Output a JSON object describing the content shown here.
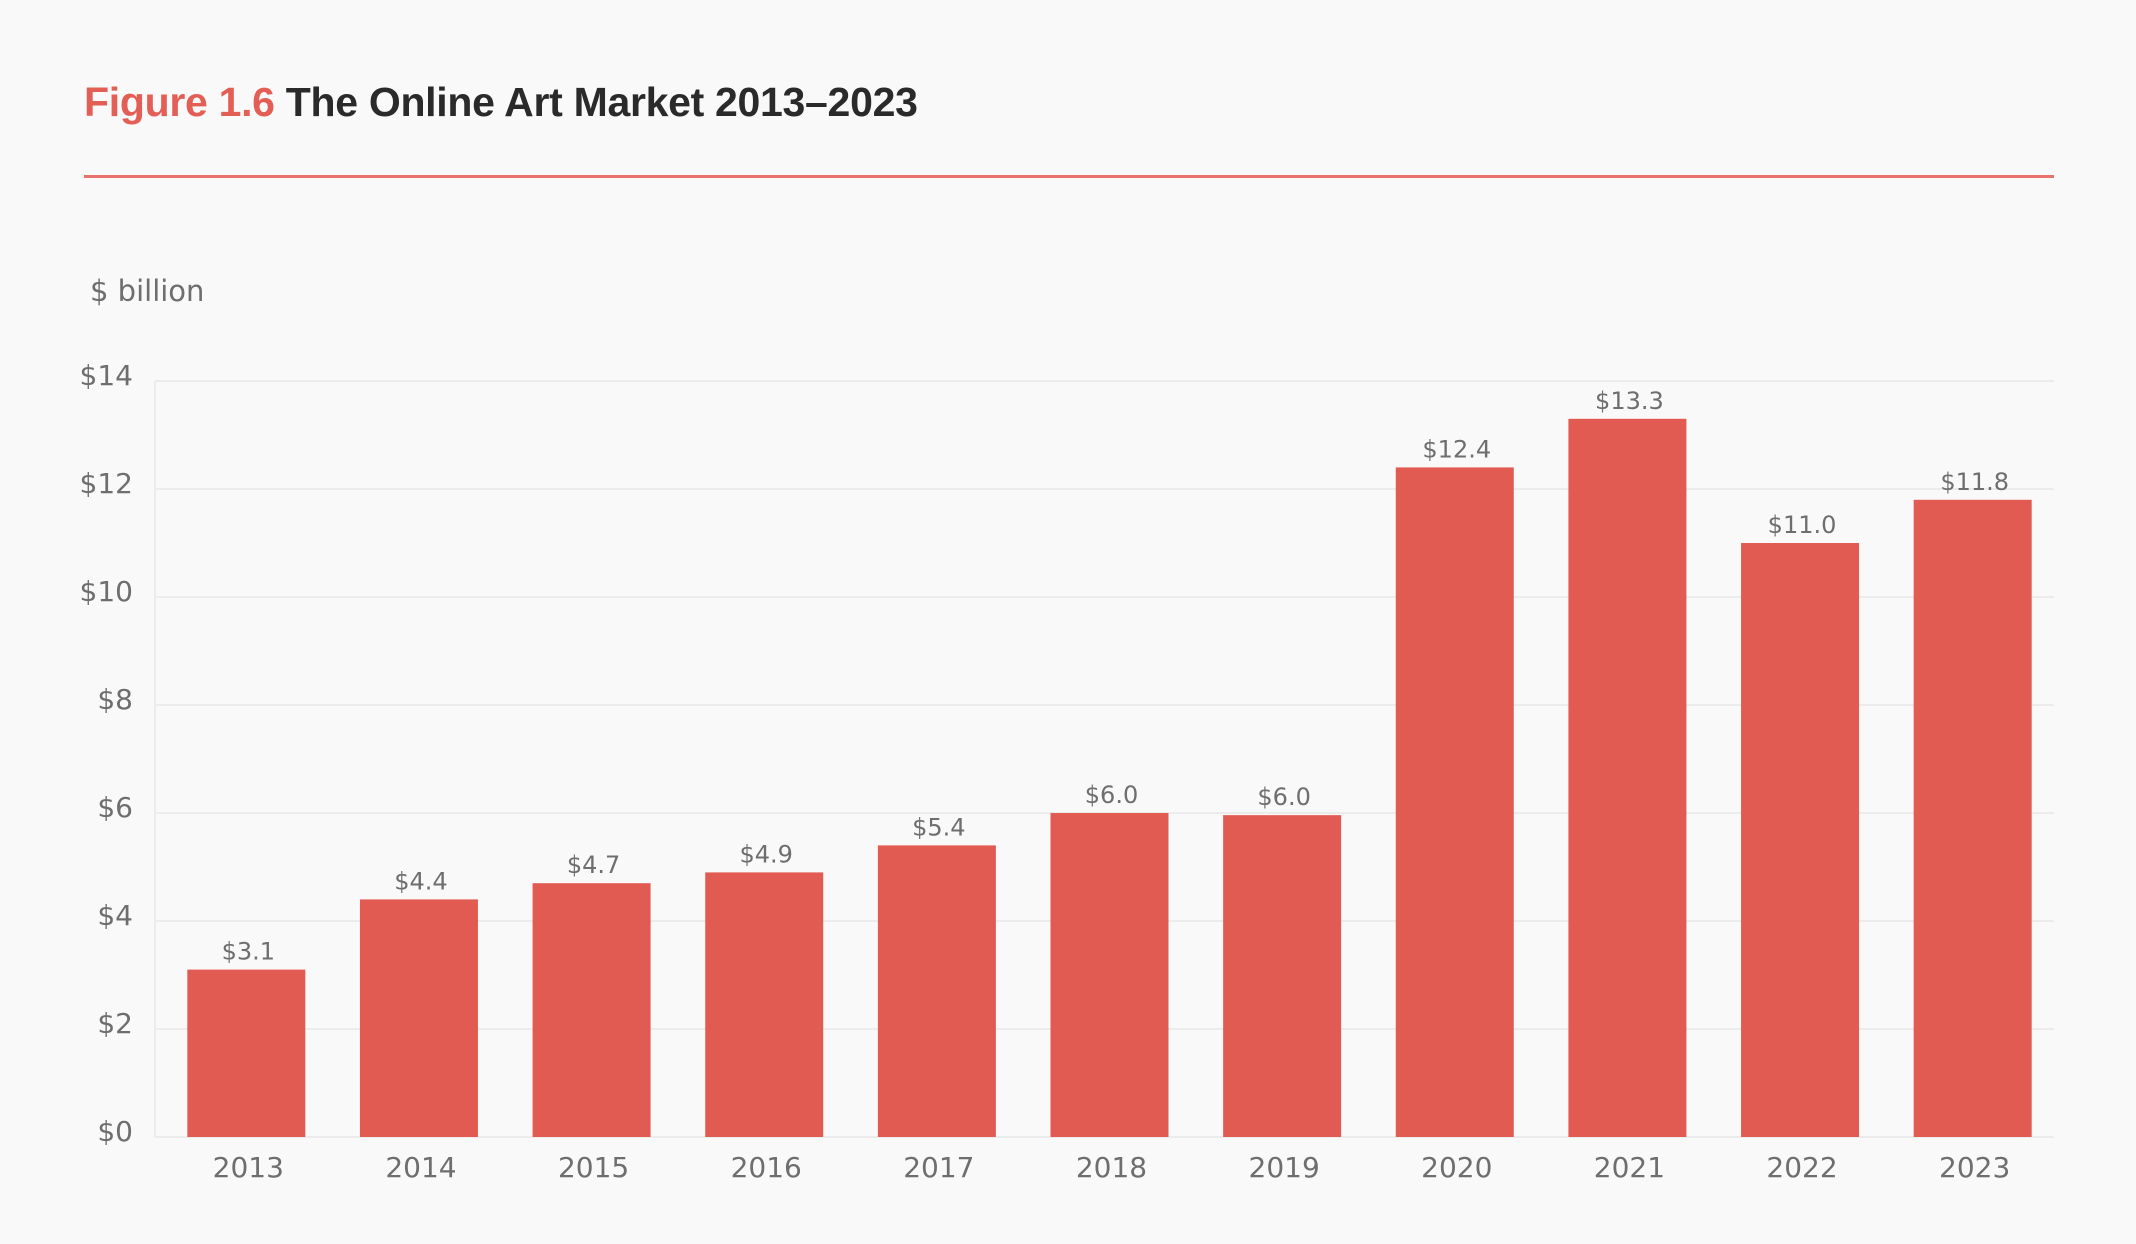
{
  "header": {
    "figure_number": "Figure 1.6",
    "figure_title": "The Online Art Market 2013–2023"
  },
  "colors": {
    "accent": "#e35f55",
    "bar": "#e25b52",
    "title_text": "#2a2a2a",
    "axis_text": "#6e6e6e",
    "gridline": "#ececec",
    "rule": "#e8736b",
    "background": "#f9f9f9"
  },
  "chart_data": {
    "type": "bar",
    "title": "The Online Art Market 2013–2023",
    "xlabel": "",
    "ylabel": "$ billion",
    "categories": [
      "2013",
      "2014",
      "2015",
      "2016",
      "2017",
      "2018",
      "2019",
      "2020",
      "2021",
      "2022",
      "2023"
    ],
    "values": [
      3.1,
      4.4,
      4.7,
      4.9,
      5.4,
      6.0,
      5.96,
      12.4,
      13.3,
      11.0,
      11.8
    ],
    "data_labels": [
      "$3.1",
      "$4.4",
      "$4.7",
      "$4.9",
      "$5.4",
      "$6.0",
      "$6.0",
      "$12.4",
      "$13.3",
      "$11.0",
      "$11.8"
    ],
    "ylim": [
      0,
      14
    ],
    "yticks": [
      0,
      2,
      4,
      6,
      8,
      10,
      12,
      14
    ],
    "ytick_labels": [
      "$0",
      "$2",
      "$4",
      "$6",
      "$8",
      "$10",
      "$12",
      "$14"
    ],
    "grid": true,
    "legend": "none"
  }
}
